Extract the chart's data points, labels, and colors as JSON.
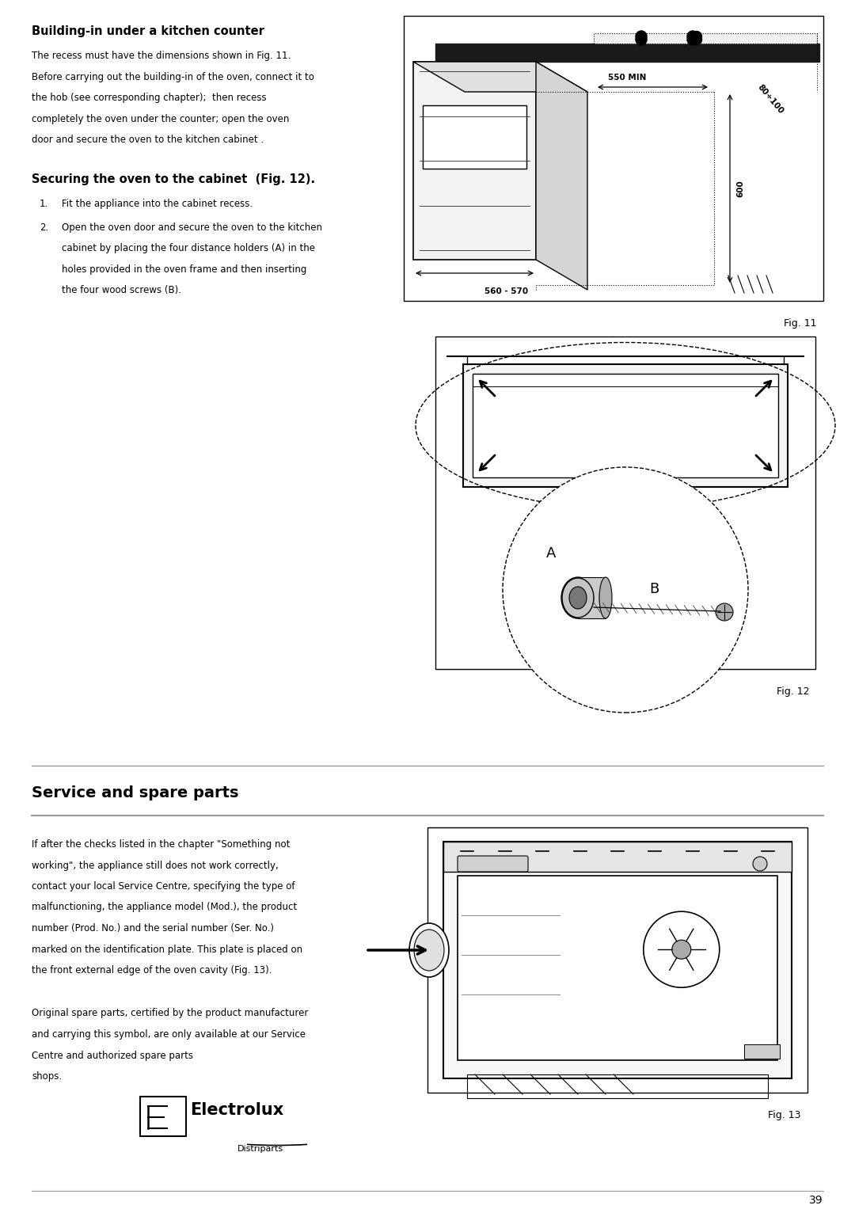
{
  "bg_color": "#ffffff",
  "page_width": 10.8,
  "page_height": 15.32,
  "ml": 0.4,
  "mr": 0.4,
  "section1_title": "Building-in under a kitchen counter",
  "section1_body_lines": [
    "The recess must have the dimensions shown in Fig. 11.",
    "Before carrying out the building-in of the oven, connect it to",
    "the hob (see corresponding chapter);  then recess",
    "completely the oven under the counter; open the oven",
    "door and secure the oven to the kitchen cabinet ."
  ],
  "section2_title": "Securing the oven to the cabinet  (Fig. 12).",
  "section2_item1": "Fit the appliance into the cabinet recess.",
  "section2_item2_lines": [
    "Open the oven door and secure the oven to the kitchen",
    "cabinet by placing the four distance holders (A) in the",
    "holes provided in the oven frame and then inserting",
    "the four wood screws (B)."
  ],
  "section3_title": "Service and spare parts",
  "section3_body1_lines": [
    "If after the checks listed in the chapter \"Something not",
    "working\", the appliance still does not work correctly,",
    "contact your local Service Centre, specifying the type of",
    "malfunctioning, the appliance model (Mod.), the product",
    "number (Prod. No.) and the serial number (Ser. No.)",
    "marked on the identification plate. This plate is placed on",
    "the front external edge of the oven cavity (Fig. 13)."
  ],
  "section3_body2_lines": [
    "Original spare parts, certified by the product manufacturer",
    "and carrying this symbol, are only available at our Service",
    "Centre and authorized spare parts",
    "shops."
  ],
  "fig11_label": "Fig. 11",
  "fig12_label": "Fig. 12",
  "fig13_label": "Fig. 13",
  "dim_550_MIN": "550 MIN",
  "dim_600": "600",
  "dim_80_100": "80÷100",
  "dim_560_570": "560 - 570",
  "label_A": "A",
  "label_B": "B",
  "electrolux_text": "Electrolux",
  "distriparts_text": "Distriparts",
  "page_number": "39"
}
